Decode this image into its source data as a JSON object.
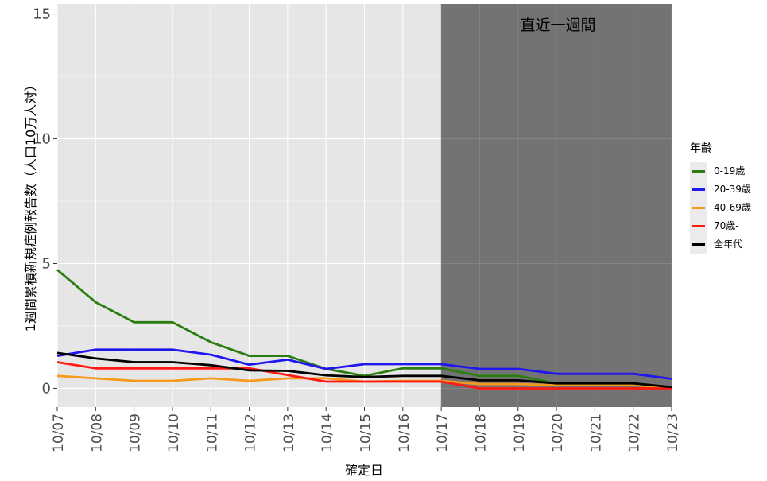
{
  "chart_data": {
    "type": "line",
    "xlabel": "確定日",
    "ylabel": "1週間累積新規症例報告数（人口10万人対）",
    "x": [
      "10/07",
      "10/08",
      "10/09",
      "10/10",
      "10/11",
      "10/12",
      "10/13",
      "10/14",
      "10/15",
      "10/16",
      "10/17",
      "10/18",
      "10/19",
      "10/20",
      "10/21",
      "10/22",
      "10/23"
    ],
    "ylim": [
      -0.75,
      15.4
    ],
    "yticks": [
      0,
      5,
      10,
      15
    ],
    "grid": true,
    "highlight": {
      "label": "直近一週間",
      "from": "10/17",
      "to": "10/23",
      "color": "#737373"
    },
    "legend": {
      "title": "年齢",
      "position": "right"
    },
    "series": [
      {
        "name": "0-19歳",
        "color": "#2a7d0f",
        "values": [
          4.75,
          3.45,
          2.65,
          2.65,
          1.85,
          1.3,
          1.3,
          0.78,
          0.5,
          0.8,
          0.8,
          0.5,
          0.5,
          0.2,
          0.2,
          0.2,
          0.05
        ]
      },
      {
        "name": "20-39歳",
        "color": "#1f17ee",
        "values": [
          1.3,
          1.55,
          1.55,
          1.55,
          1.35,
          0.95,
          1.15,
          0.78,
          0.97,
          0.97,
          0.97,
          0.78,
          0.78,
          0.58,
          0.58,
          0.58,
          0.38
        ]
      },
      {
        "name": "40-69歳",
        "color": "#f79a1c",
        "values": [
          0.5,
          0.4,
          0.3,
          0.3,
          0.4,
          0.3,
          0.4,
          0.4,
          0.27,
          0.3,
          0.3,
          0.17,
          0.17,
          0.13,
          0.13,
          0.13,
          0.0
        ]
      },
      {
        "name": "70歳-",
        "color": "#ff1a12",
        "values": [
          1.05,
          0.8,
          0.8,
          0.8,
          0.8,
          0.8,
          0.53,
          0.27,
          0.27,
          0.27,
          0.27,
          0.0,
          0.0,
          0.0,
          0.0,
          0.0,
          0.0
        ]
      },
      {
        "name": "全年代",
        "color": "#000000",
        "values": [
          1.42,
          1.2,
          1.05,
          1.05,
          0.93,
          0.72,
          0.7,
          0.52,
          0.45,
          0.5,
          0.5,
          0.32,
          0.32,
          0.2,
          0.2,
          0.2,
          0.05
        ]
      }
    ]
  }
}
